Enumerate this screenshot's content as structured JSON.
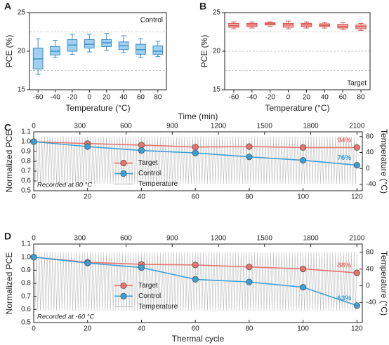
{
  "chart_data": [
    {
      "type": "box",
      "panel_label": "A",
      "xlabel": "Temperature (°C)",
      "ylabel": "PCE (%)",
      "annotation": "Control",
      "annotation_corner": "top-right",
      "color": "#9fd0ef",
      "edge_color": "#3a8cc4",
      "categories": [
        "-60",
        "-40",
        "-20",
        "0",
        "20",
        "40",
        "60",
        "80"
      ],
      "whisker_low": [
        17.0,
        19.2,
        19.6,
        19.9,
        20.1,
        19.8,
        19.2,
        19.3
      ],
      "q1": [
        17.7,
        19.5,
        20.0,
        20.4,
        20.6,
        20.2,
        19.6,
        19.6
      ],
      "median": [
        19.0,
        20.0,
        20.8,
        20.9,
        21.1,
        20.7,
        20.2,
        20.0
      ],
      "q3": [
        20.4,
        20.6,
        21.5,
        21.5,
        21.5,
        21.2,
        20.9,
        20.7
      ],
      "whisker_high": [
        21.6,
        21.4,
        22.2,
        22.2,
        22.3,
        22.0,
        21.6,
        21.3
      ],
      "reference_lines": [
        22.5,
        17.5
      ],
      "ylim": [
        15,
        25
      ],
      "yticks": [
        15,
        20,
        25
      ]
    },
    {
      "type": "box",
      "panel_label": "B",
      "xlabel": "Temperature (°C)",
      "ylabel": "PCE (%)",
      "annotation": "Target",
      "annotation_corner": "bottom-right",
      "color": "#f4aaa6",
      "edge_color": "#d9534f",
      "categories": [
        "-60",
        "-40",
        "-20",
        "0",
        "20",
        "40",
        "60",
        "80"
      ],
      "whisker_low": [
        22.9,
        23.0,
        23.2,
        22.9,
        23.0,
        23.0,
        22.8,
        22.7
      ],
      "q1": [
        23.1,
        23.2,
        23.4,
        23.1,
        23.2,
        23.2,
        23.0,
        22.9
      ],
      "median": [
        23.3,
        23.4,
        23.55,
        23.4,
        23.4,
        23.35,
        23.2,
        23.2
      ],
      "q3": [
        23.6,
        23.6,
        23.7,
        23.6,
        23.6,
        23.55,
        23.5,
        23.4
      ],
      "whisker_high": [
        23.8,
        23.8,
        23.8,
        23.9,
        23.8,
        23.7,
        23.7,
        23.6
      ],
      "reference_lines": [
        22.5,
        20,
        17.5
      ],
      "ylim": [
        15,
        25
      ],
      "yticks": [
        15,
        20,
        25
      ]
    },
    {
      "type": "line",
      "panel_label": "C",
      "x2label": "Time (min)",
      "ylabel": "Normalized PCE",
      "y2label": "Temperature (°C)",
      "annotation": "Recorded at 80 °C",
      "x": [
        0,
        20,
        40,
        60,
        80,
        100,
        120
      ],
      "xlim": [
        0,
        122
      ],
      "xticks": [
        0,
        20,
        40,
        60,
        80,
        100,
        120
      ],
      "x2lim": [
        0,
        2135
      ],
      "x2ticks": [
        0,
        300,
        600,
        900,
        1200,
        1500,
        1800,
        2100
      ],
      "ylim": [
        0.5,
        1.1
      ],
      "yticks": [
        0.5,
        0.6,
        0.7,
        0.8,
        0.9,
        {
          "value": 1,
          "label": "1.0"
        },
        1.1
      ],
      "y2lim": [
        -56,
        92
      ],
      "y2ticks": [
        -40,
        0,
        40,
        80
      ],
      "series": [
        {
          "name": "Target",
          "color": "#e8736c",
          "values": [
            1.0,
            0.98,
            0.965,
            0.945,
            0.95,
            0.94,
            0.94
          ],
          "value_labels": [
            null,
            null,
            null,
            null,
            null,
            null,
            "94%"
          ]
        },
        {
          "name": "Control",
          "color": "#3b9fd6",
          "values": [
            1.0,
            0.95,
            0.91,
            0.885,
            0.845,
            0.81,
            0.76
          ],
          "value_labels": [
            null,
            null,
            null,
            null,
            null,
            null,
            "76%"
          ]
        }
      ],
      "temperature": {
        "name": "Temperature",
        "color": "#bdbdbd",
        "axis": "y2",
        "high": 80,
        "low": -40,
        "cycles": 120
      }
    },
    {
      "type": "line",
      "panel_label": "D",
      "xlabel": "Thermal cycle",
      "ylabel": "Normalized PCE",
      "y2label": "Temperature (°C)",
      "annotation": "Recorded at -60 °C",
      "x": [
        0,
        20,
        40,
        60,
        80,
        100,
        120
      ],
      "xlim": [
        0,
        122
      ],
      "xticks": [
        0,
        20,
        40,
        60,
        80,
        100,
        120
      ],
      "x2lim": [
        0,
        2135
      ],
      "x2ticks": [
        0,
        300,
        600,
        900,
        1200,
        1500,
        1800,
        2100
      ],
      "ylim": [
        0.5,
        1.1
      ],
      "yticks": [
        0.5,
        0.6,
        0.7,
        0.8,
        0.9,
        {
          "value": 1,
          "label": "1.0"
        },
        1.1
      ],
      "y2lim": [
        -88,
        100
      ],
      "y2ticks": [
        -40,
        0,
        40,
        80
      ],
      "series": [
        {
          "name": "Target",
          "color": "#e8736c",
          "values": [
            1.0,
            0.96,
            0.945,
            0.94,
            0.925,
            0.91,
            0.88
          ],
          "value_labels": [
            null,
            null,
            null,
            null,
            null,
            null,
            "88%"
          ]
        },
        {
          "name": "Control",
          "color": "#3b9fd6",
          "values": [
            1.0,
            0.955,
            0.92,
            0.83,
            0.81,
            0.77,
            0.63
          ],
          "value_labels": [
            null,
            null,
            null,
            null,
            null,
            null,
            "63%"
          ]
        }
      ],
      "temperature": {
        "name": "Temperature",
        "color": "#bdbdbd",
        "axis": "y2",
        "high": 80,
        "low": -60,
        "cycles": 120
      }
    }
  ]
}
